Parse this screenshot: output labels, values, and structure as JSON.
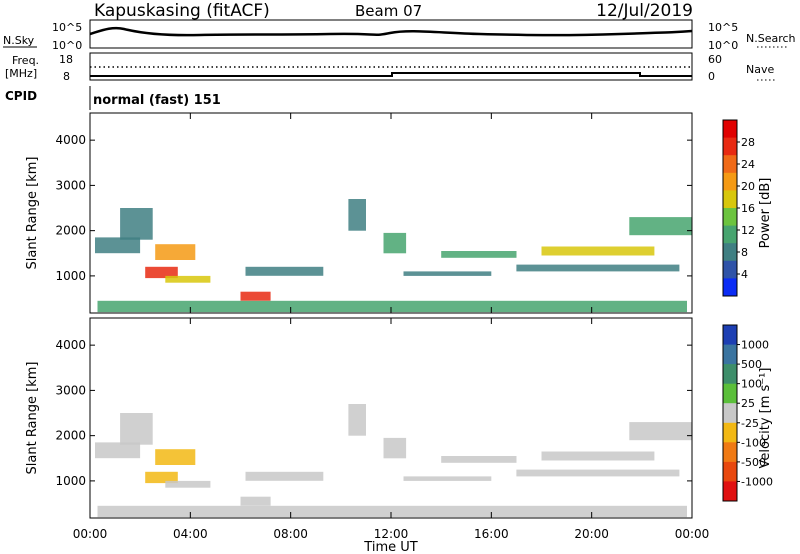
{
  "header": {
    "station": "Kapuskasing (fitACF)",
    "beam": "Beam 07",
    "date": "12/Jul/2019"
  },
  "side_labels": {
    "nsky": "N.Sky",
    "nsearch": "N.Search",
    "freq": "Freq.",
    "mhz": "[MHz]",
    "nave": "Nave",
    "cpid": "CPID"
  },
  "scales": {
    "noise_top": "10^5",
    "noise_bottom": "10^0",
    "freq_top": "18",
    "freq_bottom": "8",
    "nave_top": "60",
    "nave_bottom": "0"
  },
  "cpid_text": "normal (fast) 151",
  "x_axis": {
    "label": "Time UT",
    "ticks": [
      "00:00",
      "04:00",
      "08:00",
      "12:00",
      "16:00",
      "20:00",
      "00:00"
    ]
  },
  "power_panel": {
    "ylabel": "Slant Range [km]",
    "yticks": [
      "1000",
      "2000",
      "3000",
      "4000"
    ],
    "colorbar_label": "Power [dB]",
    "colorbar_ticks": [
      "4",
      "8",
      "12",
      "16",
      "20",
      "24",
      "28"
    ],
    "colors": [
      "#0b2cf5",
      "#2f53a8",
      "#3f7f82",
      "#47a46f",
      "#6cc43f",
      "#d8c70c",
      "#f59a14",
      "#f06a18",
      "#e82a12",
      "#e00000"
    ]
  },
  "velocity_panel": {
    "ylabel": "Slant Range [km]",
    "yticks": [
      "1000",
      "2000",
      "3000",
      "4000"
    ],
    "colorbar_label": "Velocity [m s⁻¹]",
    "colorbar_ticks": [
      "1000",
      "500",
      "100",
      "25",
      "-25",
      "-100",
      "-500",
      "-1000"
    ],
    "colors": [
      "#1d3fb3",
      "#3a74a0",
      "#3d8e6a",
      "#5bbf3a",
      "#c8c8c8",
      "#f2b814",
      "#f07a14",
      "#e8480e",
      "#e01010"
    ]
  },
  "chart_data": [
    {
      "type": "heatmap",
      "title": "Power",
      "x_range": [
        "00:00",
        "24:00"
      ],
      "y_range_km": [
        180,
        4600
      ],
      "color_range": [
        0,
        30
      ],
      "regions": [
        {
          "t0": 0.3,
          "t1": 23.8,
          "r0": 200,
          "r1": 450,
          "value": 10
        },
        {
          "t0": 0.2,
          "t1": 2.0,
          "r0": 1500,
          "r1": 1850,
          "value": 8
        },
        {
          "t0": 1.2,
          "t1": 2.5,
          "r0": 1800,
          "r1": 2500,
          "value": 8
        },
        {
          "t0": 2.2,
          "t1": 3.5,
          "r0": 950,
          "r1": 1200,
          "value": 26
        },
        {
          "t0": 2.6,
          "t1": 4.2,
          "r0": 1350,
          "r1": 1700,
          "value": 18
        },
        {
          "t0": 3.0,
          "t1": 4.8,
          "r0": 850,
          "r1": 1000,
          "value": 16
        },
        {
          "t0": 6.0,
          "t1": 7.2,
          "r0": 450,
          "r1": 650,
          "value": 24
        },
        {
          "t0": 6.2,
          "t1": 9.3,
          "r0": 1000,
          "r1": 1200,
          "value": 8
        },
        {
          "t0": 10.3,
          "t1": 11.0,
          "r0": 2000,
          "r1": 2700,
          "value": 8
        },
        {
          "t0": 11.7,
          "t1": 12.6,
          "r0": 1500,
          "r1": 1950,
          "value": 10
        },
        {
          "t0": 12.5,
          "t1": 16.0,
          "r0": 1000,
          "r1": 1100,
          "value": 8
        },
        {
          "t0": 14.0,
          "t1": 17.0,
          "r0": 1400,
          "r1": 1550,
          "value": 10
        },
        {
          "t0": 17.0,
          "t1": 23.5,
          "r0": 1100,
          "r1": 1250,
          "value": 8
        },
        {
          "t0": 18.0,
          "t1": 22.5,
          "r0": 1450,
          "r1": 1650,
          "value": 16
        },
        {
          "t0": 21.5,
          "t1": 24.0,
          "r0": 1900,
          "r1": 2300,
          "value": 9
        }
      ]
    },
    {
      "type": "heatmap",
      "title": "Velocity",
      "x_range": [
        "00:00",
        "24:00"
      ],
      "y_range_km": [
        180,
        4600
      ],
      "color_range": [
        -1000,
        1000
      ],
      "regions": [
        {
          "t0": 0.3,
          "t1": 23.8,
          "r0": 200,
          "r1": 450,
          "value": 60
        },
        {
          "t0": 0.2,
          "t1": 2.0,
          "r0": 1500,
          "r1": 1850,
          "value": 0
        },
        {
          "t0": 1.2,
          "t1": 2.5,
          "r0": 1800,
          "r1": 2500,
          "value": 0
        },
        {
          "t0": 2.2,
          "t1": 3.5,
          "r0": 950,
          "r1": 1200,
          "value": -200
        },
        {
          "t0": 2.6,
          "t1": 4.2,
          "r0": 1350,
          "r1": 1700,
          "value": -120
        },
        {
          "t0": 3.0,
          "t1": 4.8,
          "r0": 850,
          "r1": 1000,
          "value": -80
        },
        {
          "t0": 6.0,
          "t1": 7.2,
          "r0": 450,
          "r1": 650,
          "value": 60
        },
        {
          "t0": 6.2,
          "t1": 9.3,
          "r0": 1000,
          "r1": 1200,
          "value": 0
        },
        {
          "t0": 10.3,
          "t1": 11.0,
          "r0": 2000,
          "r1": 2700,
          "value": 0
        },
        {
          "t0": 11.7,
          "t1": 12.6,
          "r0": 1500,
          "r1": 1950,
          "value": -40
        },
        {
          "t0": 12.5,
          "t1": 16.0,
          "r0": 1000,
          "r1": 1100,
          "value": 0
        },
        {
          "t0": 14.0,
          "t1": 17.0,
          "r0": 1400,
          "r1": 1550,
          "value": 0
        },
        {
          "t0": 17.0,
          "t1": 23.5,
          "r0": 1100,
          "r1": 1250,
          "value": 0
        },
        {
          "t0": 18.0,
          "t1": 22.5,
          "r0": 1450,
          "r1": 1650,
          "value": 0
        },
        {
          "t0": 21.5,
          "t1": 24.0,
          "r0": 1900,
          "r1": 2300,
          "value": 0
        }
      ]
    }
  ]
}
